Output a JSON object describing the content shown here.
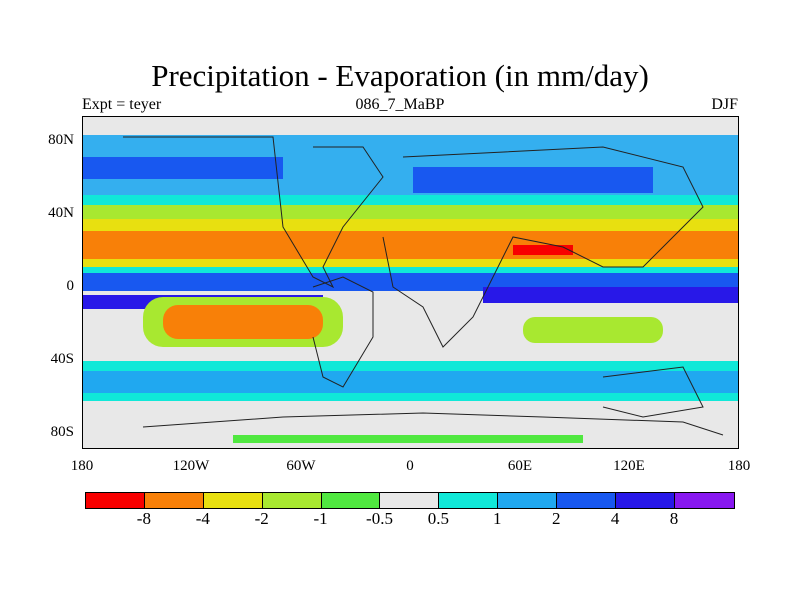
{
  "title": "Precipitation - Evaporation (in mm/day)",
  "subtitle_left": "Expt = teyer",
  "subtitle_center": "086_7_MaBP",
  "subtitle_right": "DJF",
  "y_axis_labels": [
    "80N",
    "40N",
    "0",
    "40S",
    "80S"
  ],
  "x_axis_labels": [
    "180",
    "120W",
    "60W",
    "0",
    "60E",
    "120E",
    "180"
  ],
  "colorbar": {
    "colors": [
      "#f80000",
      "#f88008",
      "#e8e010",
      "#a8e830",
      "#50e840",
      "#e8e8e8",
      "#10e8d8",
      "#20a8f0",
      "#1858f0",
      "#2818e8",
      "#8818f0"
    ],
    "labels": [
      "-8",
      "-4",
      "-2",
      "-1",
      "-0.5",
      "0.5",
      "1",
      "2",
      "4",
      "8"
    ]
  },
  "map_colors": {
    "ocean_neutral": "#e8e8e8",
    "coast_line": "#222222"
  }
}
